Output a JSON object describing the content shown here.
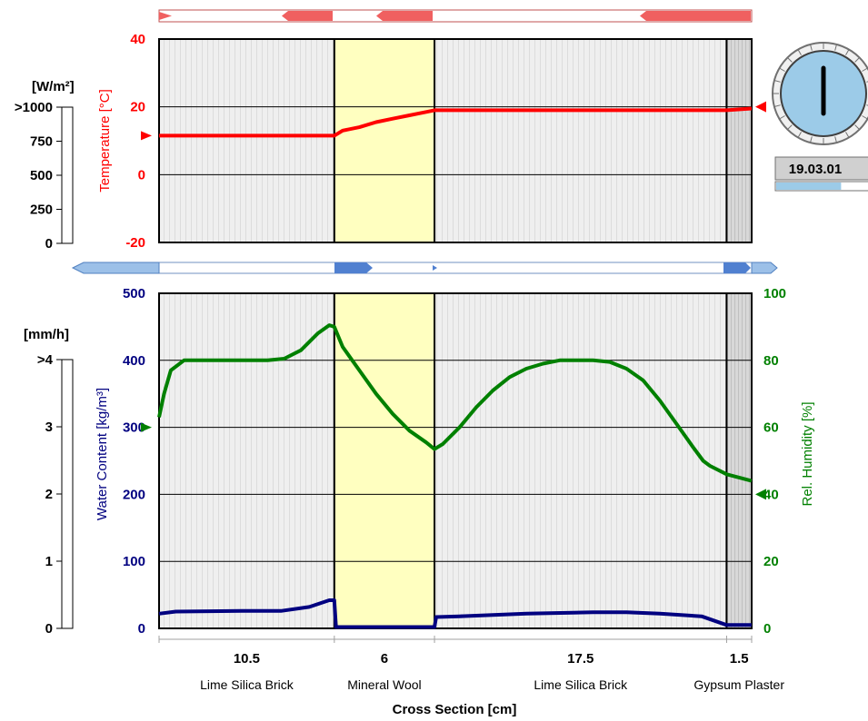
{
  "chart_data": [
    {
      "name": "temperature-panel",
      "type": "line",
      "ylabel": "Temperature [°C]",
      "ylim": [
        -20,
        40
      ],
      "yticks": [
        "40",
        "20",
        "0",
        "-20"
      ],
      "xlim": [
        0,
        35.5
      ],
      "grid": true,
      "series": [
        {
          "name": "Temperature",
          "color": "#ff0000",
          "x": [
            0,
            10.5,
            11,
            12,
            13,
            14,
            15,
            16,
            16.5,
            20,
            25,
            30,
            34,
            35.5
          ],
          "y": [
            11.5,
            11.5,
            13,
            14,
            15.5,
            16.5,
            17.5,
            18.5,
            19,
            19,
            19,
            19,
            19,
            19.5
          ]
        }
      ],
      "boundary_marker_left": 11.5,
      "boundary_marker_right": 20
    },
    {
      "name": "moisture-panel",
      "type": "line",
      "ylabel": "Water Content [kg/m³]",
      "ylim": [
        0,
        500
      ],
      "yticks": [
        "500",
        "400",
        "300",
        "200",
        "100",
        "0"
      ],
      "y2label": "Rel. Humidity [%]",
      "y2lim": [
        0,
        100
      ],
      "y2ticks": [
        "100",
        "80",
        "60",
        "40",
        "20",
        "0"
      ],
      "xlim": [
        0,
        35.5
      ],
      "xlabel": "Cross Section [cm]",
      "grid": true,
      "series": [
        {
          "name": "Rel. Humidity",
          "axis": "right",
          "color": "#008000",
          "x": [
            0,
            0.3,
            0.7,
            1.5,
            3,
            5,
            6.5,
            7.5,
            8.5,
            9.5,
            10.2,
            10.5,
            11,
            12,
            13,
            14,
            15,
            16,
            16.5,
            17,
            18,
            19,
            20,
            21,
            22,
            23,
            24,
            25,
            26,
            27,
            28,
            29,
            30,
            31,
            32,
            32.6,
            33,
            34,
            35.5
          ],
          "y": [
            63,
            70,
            77,
            80,
            80,
            80,
            80,
            80.5,
            83,
            88,
            90.5,
            90,
            84,
            77,
            70,
            64,
            59,
            55.5,
            53.5,
            55,
            60,
            66,
            71,
            75,
            77.5,
            79,
            80,
            80,
            80,
            79.5,
            77.5,
            74,
            68,
            61,
            54,
            50,
            48.5,
            46,
            44
          ]
        },
        {
          "name": "Water Content",
          "axis": "left",
          "color": "#000080",
          "x": [
            0,
            1,
            5,
            7.3,
            9,
            10.2,
            10.5,
            10.6,
            16.5,
            16.6,
            18,
            20,
            22,
            26,
            28,
            30,
            32.5,
            34,
            35.5
          ],
          "y": [
            22,
            25,
            26,
            26,
            32,
            42,
            42,
            2,
            2,
            17,
            18,
            20,
            22,
            24,
            24,
            22,
            18,
            5,
            5
          ]
        }
      ],
      "boundary_marker_left": 60,
      "boundary_marker_right": 40
    }
  ],
  "layers": [
    {
      "thickness": "10.5",
      "material": "Lime Silica Brick",
      "cm": 10.5
    },
    {
      "thickness": "6",
      "material": "Mineral Wool",
      "cm": 6
    },
    {
      "thickness": "17.5",
      "material": "Lime Silica Brick",
      "cm": 17.5
    },
    {
      "thickness": "1.5",
      "material": "Gypsum Plaster",
      "cm": 1.5
    }
  ],
  "radiation_scale": {
    "unit": "[W/m²]",
    "ticks": [
      ">1000",
      "750",
      "500",
      "250",
      "0"
    ]
  },
  "rain_scale": {
    "unit": "[mm/h]",
    "ticks": [
      ">4",
      "3",
      "2",
      "1",
      "0"
    ]
  },
  "date": "19.03.01",
  "date_progress": 0.7,
  "colors": {
    "temperature": "#ff0000",
    "water": "#000080",
    "humidity": "#008000",
    "insulation": "#ffffc0",
    "clock": "#9ccbe8"
  }
}
